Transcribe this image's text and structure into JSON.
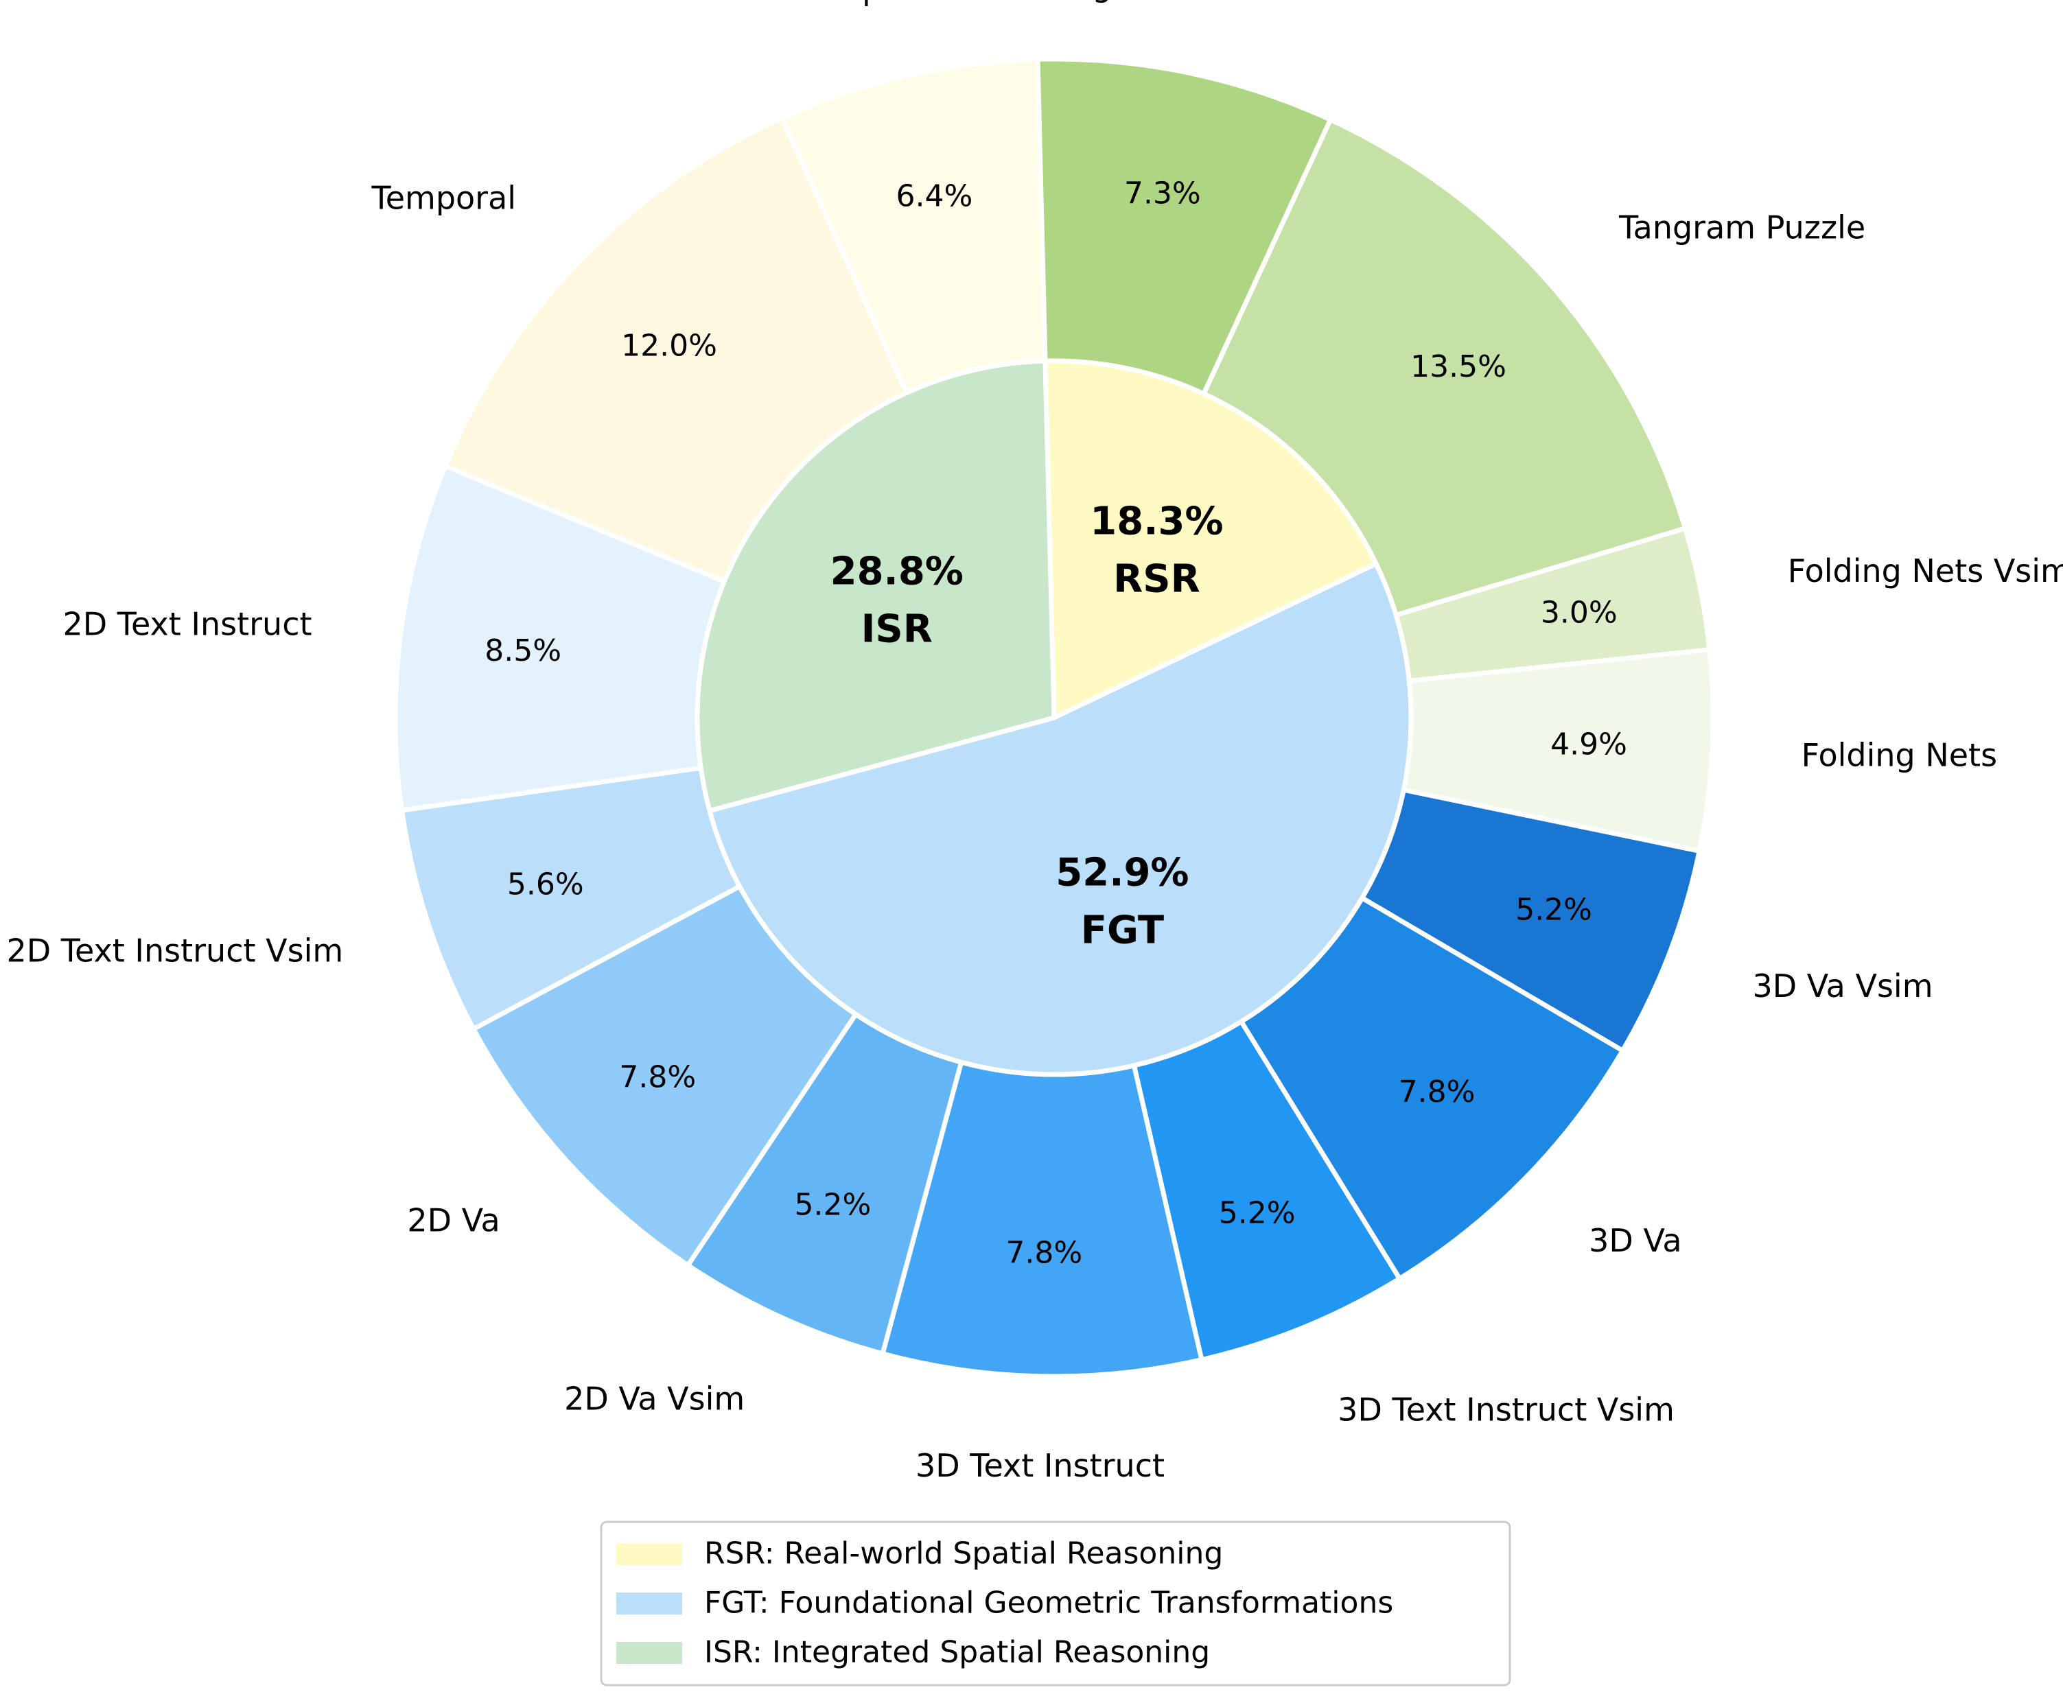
{
  "chart_data": {
    "type": "pie",
    "variant": "nested-donut",
    "inner_ring": [
      {
        "key": "RSR",
        "label": "RSR",
        "percent_label": "18.3%",
        "value": 18.3,
        "color": "#FFF9C4"
      },
      {
        "key": "FGT",
        "label": "FGT",
        "percent_label": "52.9%",
        "value": 52.9,
        "color": "#BBDEFB"
      },
      {
        "key": "ISR",
        "label": "ISR",
        "percent_label": "28.8%",
        "value": 28.8,
        "color": "#C8E6C9"
      }
    ],
    "outer_ring": [
      {
        "label": "Tangram Puzzle Vsim",
        "percent_label": "7.3%",
        "value": 7.3,
        "color": "#AED581",
        "group": "ISR"
      },
      {
        "label": "Tangram Puzzle",
        "percent_label": "13.5%",
        "value": 13.5,
        "color": "#C5E1A5",
        "group": "ISR"
      },
      {
        "label": "Folding Nets Vsim",
        "percent_label": "3.0%",
        "value": 3.0,
        "color": "#DCEDC8",
        "group": "ISR"
      },
      {
        "label": "Folding Nets",
        "percent_label": "4.9%",
        "value": 4.9,
        "color": "#F1F8E9",
        "group": "ISR"
      },
      {
        "label": "3D Va Vsim",
        "percent_label": "5.2%",
        "value": 5.2,
        "color": "#1976D2",
        "group": "FGT"
      },
      {
        "label": "3D Va",
        "percent_label": "7.8%",
        "value": 7.8,
        "color": "#1E88E5",
        "group": "FGT"
      },
      {
        "label": "3D Text Instruct Vsim",
        "percent_label": "5.2%",
        "value": 5.2,
        "color": "#2196F3",
        "group": "FGT"
      },
      {
        "label": "3D Text Instruct",
        "percent_label": "7.8%",
        "value": 7.8,
        "color": "#42A5F5",
        "group": "FGT"
      },
      {
        "label": "2D Va Vsim",
        "percent_label": "5.2%",
        "value": 5.2,
        "color": "#64B5F6",
        "group": "FGT"
      },
      {
        "label": "2D Va",
        "percent_label": "7.8%",
        "value": 7.8,
        "color": "#90CAF9",
        "group": "FGT"
      },
      {
        "label": "2D Text Instruct Vsim",
        "percent_label": "5.6%",
        "value": 5.6,
        "color": "#BBDEFB",
        "group": "FGT"
      },
      {
        "label": "2D Text Instruct",
        "percent_label": "8.5%",
        "value": 8.5,
        "color": "#E3F2FD",
        "group": "FGT"
      },
      {
        "label": "Temporal",
        "percent_label": "12.0%",
        "value": 12.0,
        "color": "#FFF8E1",
        "group": "RSR"
      },
      {
        "label": "Perspective",
        "percent_label": "6.4%",
        "value": 6.4,
        "color": "#FFFDE7",
        "group": "RSR"
      }
    ],
    "legend": [
      {
        "text": "RSR: Real-world Spatial Reasoning",
        "color": "#FFF9C4"
      },
      {
        "text": "FGT: Foundational Geometric Transformations",
        "color": "#BBDEFB"
      },
      {
        "text": "ISR: Integrated Spatial Reasoning",
        "color": "#C8E6C9"
      }
    ],
    "legend_position": "bottom-center",
    "start_angle": "top (12 o'clock)",
    "direction": "clockwise"
  }
}
